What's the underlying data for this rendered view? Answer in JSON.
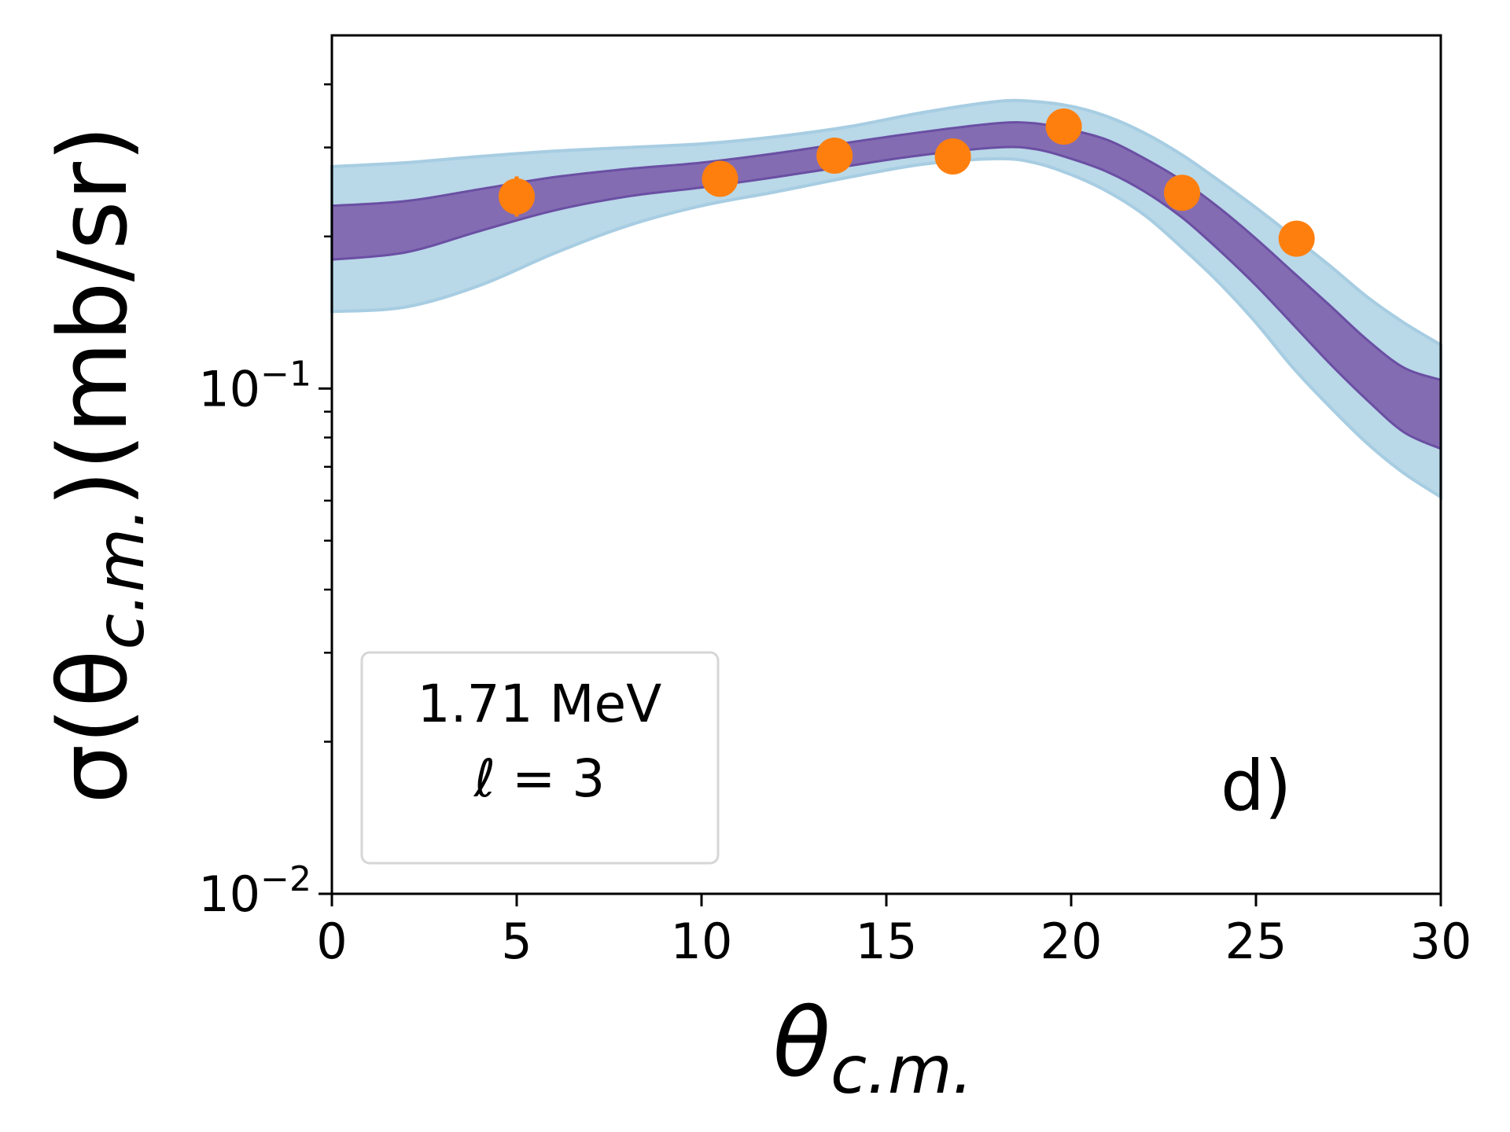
{
  "chart_data": {
    "type": "line",
    "xlabel_main": "θ",
    "xlabel_sub": "c.m.",
    "ylabel_pre": "σ(θ",
    "ylabel_sub": "c.m.",
    "ylabel_post": ")(mb/sr)",
    "xlim": [
      0,
      30
    ],
    "ylim": [
      0.01,
      0.5
    ],
    "yscale": "log",
    "x_ticks": [
      0,
      5,
      10,
      15,
      20,
      25,
      30
    ],
    "x_tick_labels": [
      "0",
      "5",
      "10",
      "15",
      "20",
      "25",
      "30"
    ],
    "y_major_ticks": [
      {
        "value": 0.1,
        "base": "10",
        "exp": "−1"
      },
      {
        "value": 0.01,
        "base": "10",
        "exp": "−2"
      }
    ],
    "y_minor_ticks": [
      0.02,
      0.03,
      0.04,
      0.05,
      0.06,
      0.07,
      0.08,
      0.09,
      0.2,
      0.3,
      0.4
    ],
    "legend": {
      "line1": "1.71 MeV",
      "line2_symbol": "ℓ",
      "line2_rest": " = 3",
      "position": "lower-left"
    },
    "panel_label": "d)",
    "colors": {
      "outer_band": "#b9d8e8",
      "outer_band_edge": "#a7cde2",
      "inner_band": "#846cb2",
      "inner_band_edge": "#6a4fa3",
      "points": "#ff7f0e"
    },
    "bands": {
      "x": [
        0,
        2,
        4,
        6,
        8,
        10,
        12,
        14,
        16,
        18,
        19,
        20,
        21,
        22,
        23,
        24,
        25,
        26,
        27,
        28,
        29,
        30
      ],
      "outer_upper": [
        0.275,
        0.28,
        0.288,
        0.295,
        0.3,
        0.305,
        0.315,
        0.33,
        0.352,
        0.37,
        0.37,
        0.362,
        0.345,
        0.32,
        0.29,
        0.258,
        0.228,
        0.2,
        0.175,
        0.152,
        0.135,
        0.122
      ],
      "inner_upper": [
        0.23,
        0.235,
        0.248,
        0.262,
        0.272,
        0.28,
        0.292,
        0.307,
        0.322,
        0.335,
        0.335,
        0.325,
        0.31,
        0.285,
        0.258,
        0.228,
        0.198,
        0.17,
        0.146,
        0.125,
        0.11,
        0.104
      ],
      "inner_lower": [
        0.18,
        0.186,
        0.205,
        0.225,
        0.24,
        0.25,
        0.262,
        0.276,
        0.29,
        0.3,
        0.298,
        0.285,
        0.268,
        0.245,
        0.218,
        0.188,
        0.16,
        0.134,
        0.112,
        0.095,
        0.082,
        0.076
      ],
      "outer_lower": [
        0.142,
        0.145,
        0.16,
        0.185,
        0.21,
        0.23,
        0.245,
        0.262,
        0.278,
        0.285,
        0.28,
        0.265,
        0.245,
        0.22,
        0.19,
        0.162,
        0.135,
        0.11,
        0.092,
        0.078,
        0.068,
        0.061
      ]
    },
    "points": {
      "x": [
        5.0,
        10.5,
        13.6,
        16.8,
        19.8,
        23.0,
        26.1
      ],
      "y": [
        0.24,
        0.26,
        0.289,
        0.288,
        0.33,
        0.244,
        0.198
      ],
      "err_low": [
        0.219,
        0.26,
        0.289,
        0.288,
        0.33,
        0.244,
        0.198
      ],
      "err_high": [
        0.263,
        0.26,
        0.289,
        0.288,
        0.33,
        0.244,
        0.198
      ]
    }
  }
}
